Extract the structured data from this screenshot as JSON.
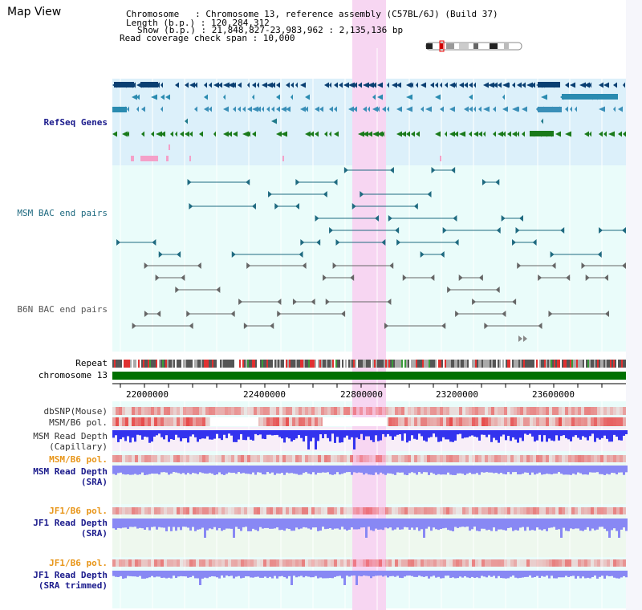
{
  "header": {
    "title": "Map View",
    "chromosome_line": "Chromosome   : Chromosome 13, reference assembly (C57BL/6J) (Build 37)",
    "length_line": "Length (b.p.) : 120,284,312",
    "show_line": "Show (b.p.) : 21,848,827-23,983,962 : 2,135,136 bp",
    "coverage_line": "Read coverage check span : 10,000"
  },
  "tracks": {
    "refseq": "RefSeq Genes",
    "msm_bac": "MSM BAC end pairs",
    "b6n_bac": "B6N BAC end pairs",
    "repeat": "Repeat",
    "chromosome": "chromosome 13",
    "dbsnp": "dbSNP(Mouse)",
    "msm_b6_pol_1": "MSM/B6 pol.",
    "msm_depth_cap_1": "MSM Read Depth",
    "msm_depth_cap_2": "(Capillary)",
    "msm_b6_pol_2": "MSM/B6 pol.",
    "msm_depth_sra_1": "MSM Read Depth",
    "msm_depth_sra_2": "(SRA)",
    "jf1_b6_pol_1": "JF1/B6 pol.",
    "jf1_depth_sra_1": "JF1 Read Depth",
    "jf1_depth_sra_2": "(SRA)",
    "jf1_b6_pol_2": "JF1/B6 pol.",
    "jf1_depth_trim_1": "JF1 Read Depth",
    "jf1_depth_trim_2": "(SRA trimmed)"
  },
  "axis": {
    "ticks": [
      "22000000",
      "22400000",
      "22800000",
      "23200000",
      "23600000"
    ]
  },
  "colors": {
    "highlight": "#f7d6f2",
    "refseq_bg": "#dcf0fa",
    "lane_bg": "#eafcfa",
    "chromosome_bar": "#007000",
    "depth_blue": "#3333ee",
    "depth_light_blue": "#8888f4",
    "pol_red": "#ee2222",
    "orange_label": "#e8961a"
  }
}
